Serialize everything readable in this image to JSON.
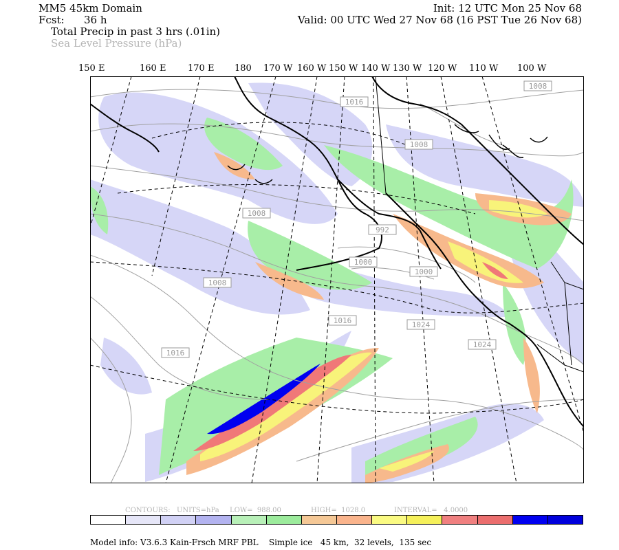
{
  "header": {
    "domain_title": "MM5 45km Domain",
    "fcst_label": "Fcst:",
    "fcst_value": "36 h",
    "init_text": "Init: 12 UTC Mon 25 Nov 68",
    "valid_text": "Valid: 00 UTC Wed 27 Nov 68 (16 PST Tue 26 Nov 68)",
    "field1": "Total Precip in past 3 hrs (.01in)",
    "field2": "Sea Level Pressure (hPa)"
  },
  "longitude_labels": [
    "150 E",
    "160 E",
    "170 E",
    "180",
    "170 W",
    "160 W",
    "150 W",
    "140 W",
    "130 W",
    "120 W",
    "110 W",
    "100 W"
  ],
  "pressure_labels": [
    "1016",
    "1008",
    "1008",
    "992",
    "1000",
    "1000",
    "1008",
    "1008",
    "1016",
    "1016",
    "1024",
    "1024"
  ],
  "contour_info": {
    "contours": "CONTOURS:",
    "units": "UNITS=hPa",
    "low": "LOW=  988.00",
    "high": "HIGH=  1028.0",
    "interval": "INTERVAL=   4.0000"
  },
  "colorbar": {
    "colors": [
      "#ffffff",
      "#e6e6f8",
      "#d1d1f5",
      "#b3b3f0",
      "#b8f0b8",
      "#9ceb9c",
      "#f5c896",
      "#fab48c",
      "#fafa82",
      "#f5f05a",
      "#f08080",
      "#eb6e6e",
      "#0000f0",
      "#0000dc"
    ]
  },
  "footer": {
    "model_info": "Model info: V3.6.3 Kain-Frsch MRF PBL    Simple ice   45 km,  32 levels,  135 sec"
  },
  "colors": {
    "light_precip": "#d6d6f7",
    "green_precip": "#a8eea8",
    "orange_precip": "#f7b98c",
    "yellow_precip": "#f8f37a",
    "red_precip": "#f07878",
    "blue_precip": "#0000f0",
    "isobar": "#a0a0a0"
  }
}
